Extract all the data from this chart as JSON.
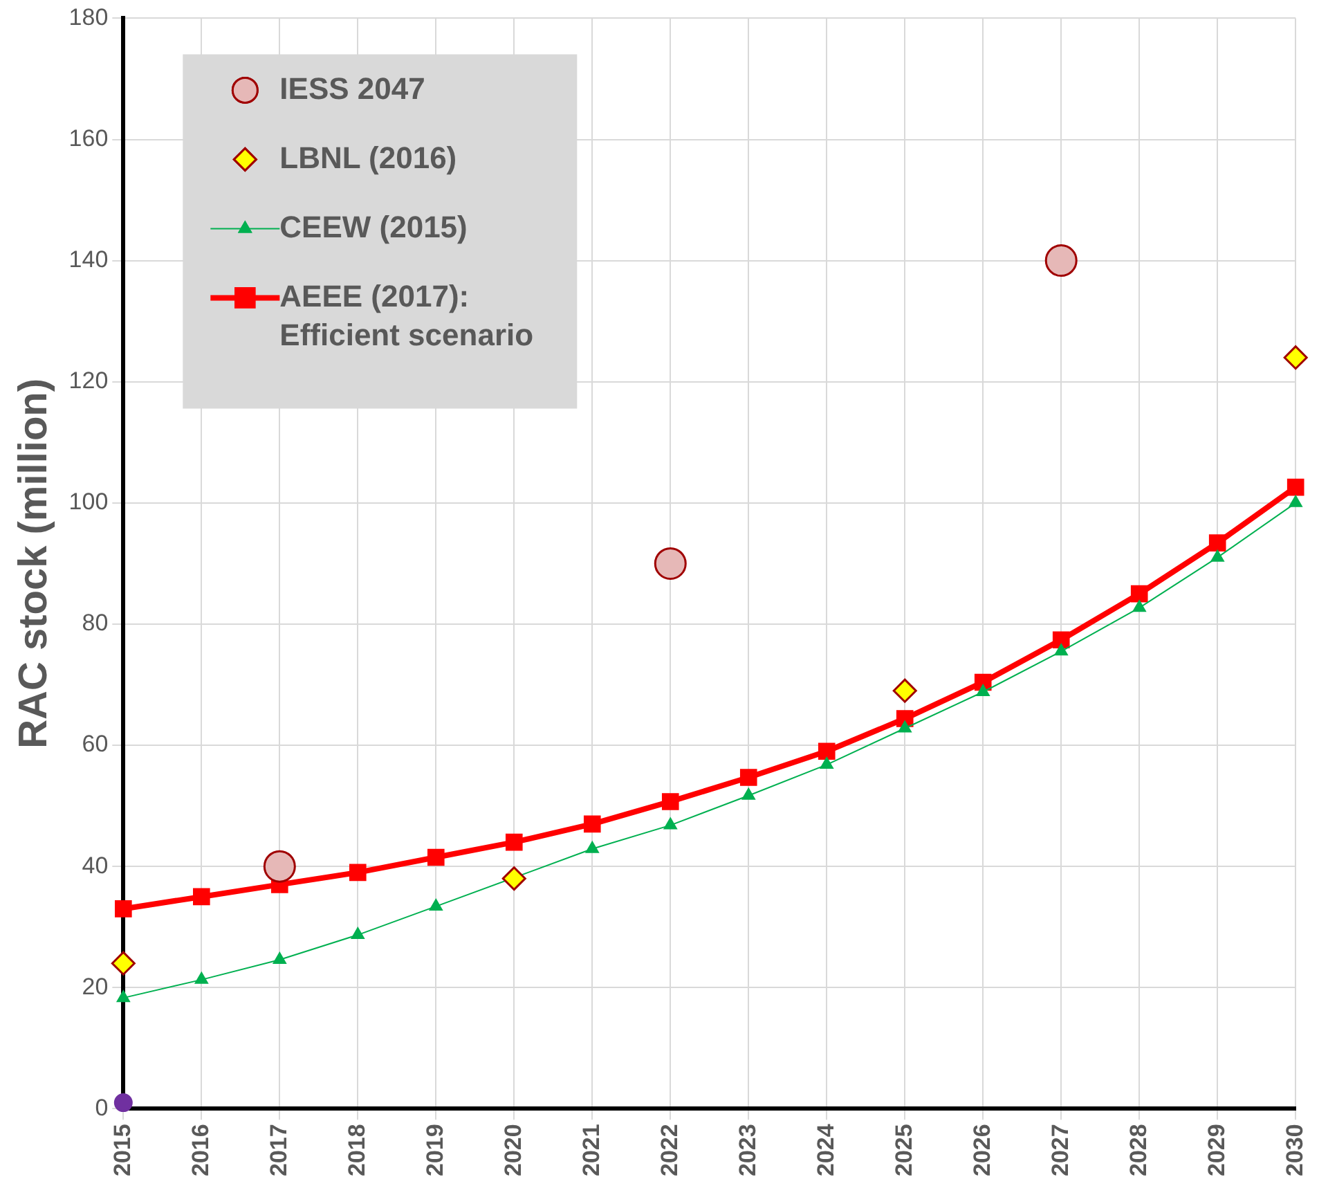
{
  "chart_data": {
    "type": "line",
    "ylabel": "RAC stock (million)",
    "categories": [
      "2015",
      "2016",
      "2017",
      "2018",
      "2019",
      "2020",
      "2021",
      "2022",
      "2023",
      "2024",
      "2025",
      "2026",
      "2027",
      "2028",
      "2029",
      "2030"
    ],
    "series": [
      {
        "name": "IESS 2047",
        "type": "scatter",
        "marker": "circle",
        "color": "#e6b8b7",
        "values": [
          null,
          null,
          40,
          null,
          null,
          null,
          null,
          90,
          null,
          null,
          null,
          null,
          140,
          null,
          null,
          null
        ]
      },
      {
        "name": "LBNL (2016)",
        "type": "scatter",
        "marker": "diamond",
        "color": "#ffff00",
        "values": [
          24,
          null,
          null,
          null,
          null,
          38,
          null,
          null,
          null,
          null,
          69,
          null,
          null,
          null,
          null,
          124
        ]
      },
      {
        "name": "CEEW (2015)",
        "marker": "triangle",
        "color": "#00b050",
        "values": [
          18.3,
          21.3,
          24.6,
          28.7,
          33.4,
          null,
          42.9,
          46.8,
          51.7,
          56.8,
          62.8,
          68.8,
          75.5,
          82.7,
          91,
          100
        ]
      },
      {
        "name": "AEEE (2017): Efficient scenario",
        "marker": "square",
        "color": "#ff0000",
        "values": [
          33,
          35,
          37,
          39,
          41.5,
          44,
          47,
          50.7,
          54.7,
          59,
          64.4,
          70.4,
          77.4,
          85,
          93.4,
          102.6
        ]
      },
      {
        "type": "scatter",
        "marker": "circle",
        "color": "#7030a0",
        "values": [
          1,
          null,
          null,
          null,
          null,
          null,
          null,
          null,
          null,
          null,
          null,
          null,
          null,
          null,
          null,
          null
        ]
      }
    ],
    "ylim": [
      0,
      180
    ],
    "yticks": [
      0,
      20,
      40,
      60,
      80,
      100,
      120,
      140,
      160,
      180
    ],
    "grid": true,
    "legend": "top left"
  }
}
